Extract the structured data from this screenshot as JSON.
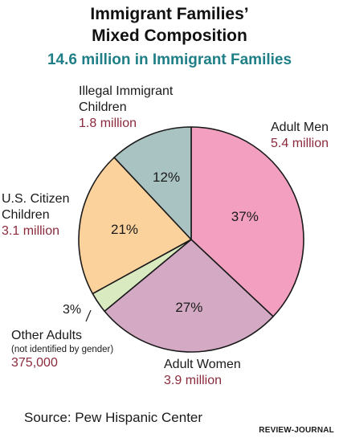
{
  "title_line1": "Immigrant Families’",
  "title_line2": "Mixed Composition",
  "subtitle": "14.6 million in Immigrant Families",
  "chart_data": {
    "type": "pie",
    "title": "Immigrant Families’ Mixed Composition",
    "subtitle": "14.6 million in Immigrant Families",
    "slices": [
      {
        "name": "Adult Men",
        "percent": 37,
        "percent_label": "37%",
        "value_label": "5.4 million",
        "color": "#f3a0c0"
      },
      {
        "name": "Adult Women",
        "percent": 27,
        "percent_label": "27%",
        "value_label": "3.9 million",
        "color": "#d3a9c3"
      },
      {
        "name": "Other Adults",
        "percent": 3,
        "percent_label": "3%",
        "value_label": "375,000",
        "note": "(not identified by gender)",
        "color": "#d9eac0"
      },
      {
        "name": "U.S. Citizen Children",
        "percent": 21,
        "percent_label": "21%",
        "value_label": "3.1 million",
        "color": "#fbd19c"
      },
      {
        "name": "Illegal Immigrant Children",
        "percent": 12,
        "percent_label": "12%",
        "value_label": "1.8 million",
        "color": "#a9c2c2"
      }
    ]
  },
  "labels": {
    "men_name": "Adult Men",
    "women_name": "Adult Women",
    "other_name": "Other Adults",
    "other_note": "(not identified by gender)",
    "citizen_line1": "U.S. Citizen",
    "citizen_line2": "Children",
    "illegal_line1": "Illegal Immigrant",
    "illegal_line2": "Children"
  },
  "source": "Source: Pew Hispanic Center",
  "credit": "REVIEW-JOURNAL"
}
